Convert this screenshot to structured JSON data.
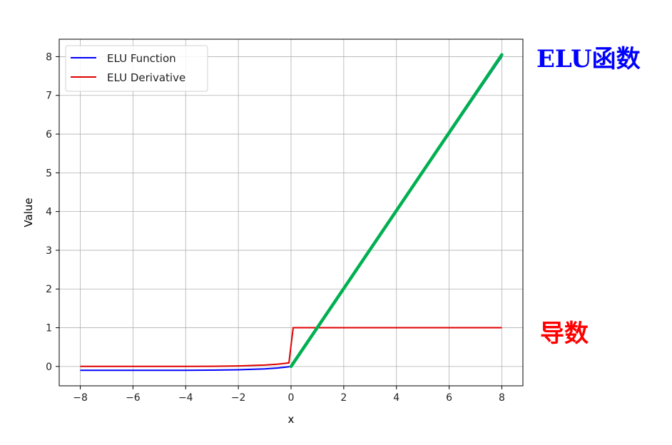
{
  "chart_data": {
    "type": "line",
    "title": "",
    "xlabel": "x",
    "ylabel": "Value",
    "xlim": [
      -8.8,
      8.8
    ],
    "ylim": [
      -0.5,
      8.45
    ],
    "xticks": [
      -8,
      -6,
      -4,
      -2,
      0,
      2,
      4,
      6,
      8
    ],
    "xtick_labels": [
      "−8",
      "−6",
      "−4",
      "−2",
      "0",
      "2",
      "4",
      "6",
      "8"
    ],
    "yticks": [
      0,
      1,
      2,
      3,
      4,
      5,
      6,
      7,
      8
    ],
    "ytick_labels": [
      "0",
      "1",
      "2",
      "3",
      "4",
      "5",
      "6",
      "7",
      "8"
    ],
    "grid": true,
    "legend_position": "top-left",
    "series": [
      {
        "name": "ELU Function",
        "color": "#0000ff",
        "x": [
          -8,
          -6,
          -4,
          -3,
          -2,
          -1,
          -0.5,
          -0.25,
          -0.08,
          0,
          0.08,
          2,
          4,
          6,
          8
        ],
        "y": [
          -0.1,
          -0.0998,
          -0.0982,
          -0.095,
          -0.0865,
          -0.0632,
          -0.0393,
          -0.0221,
          -0.0077,
          0,
          0.08,
          2,
          4,
          6,
          8
        ]
      },
      {
        "name": "ELU Derivative",
        "color": "#e00000",
        "x": [
          -8,
          -6,
          -4,
          -3,
          -2,
          -1,
          -0.5,
          -0.25,
          -0.08,
          0.08,
          2,
          4,
          6,
          8
        ],
        "y": [
          0.0,
          0.0002,
          0.0018,
          0.005,
          0.0135,
          0.0368,
          0.0607,
          0.0779,
          0.0923,
          1,
          1,
          1,
          1,
          1
        ]
      }
    ],
    "highlight": {
      "color": "#00b050",
      "x": [
        0,
        8
      ],
      "y": [
        0,
        8.05
      ]
    },
    "annotations": [
      {
        "text": "ELU函数",
        "color": "#0000ff"
      },
      {
        "text": "导数",
        "color": "#ff0000"
      }
    ]
  }
}
